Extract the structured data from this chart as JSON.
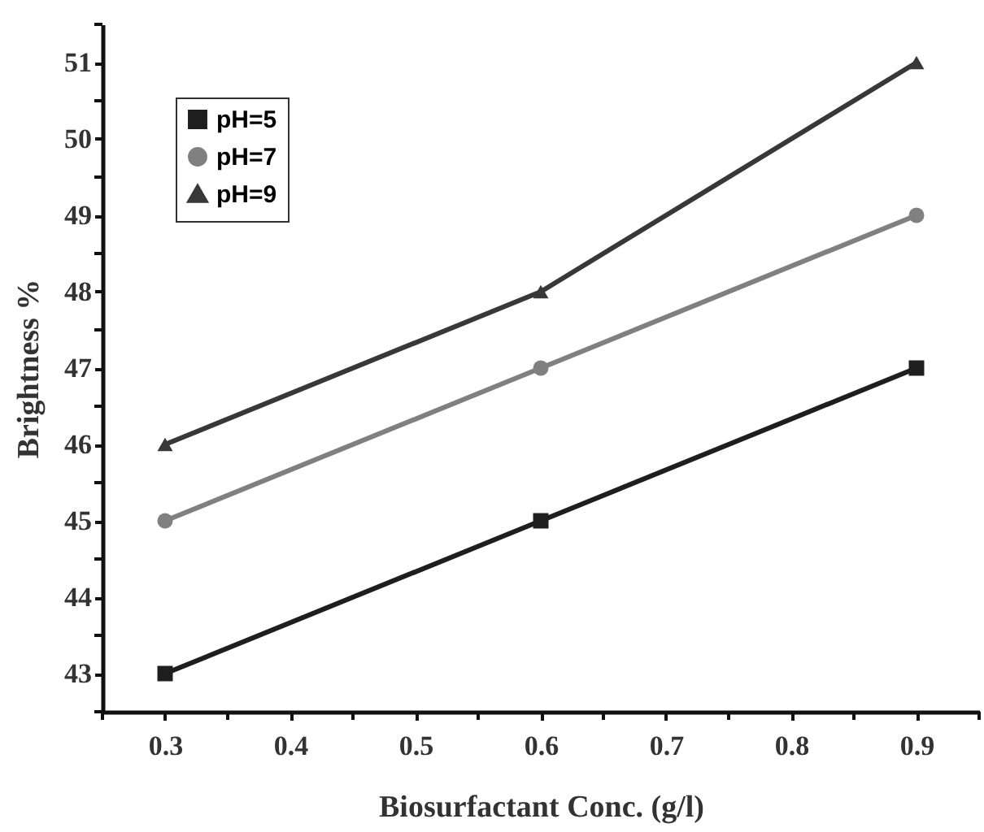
{
  "chart_data": {
    "type": "line",
    "xlabel": "Biosurfactant Conc. (g/l)",
    "ylabel": "Brightness %",
    "x": [
      0.3,
      0.6,
      0.9
    ],
    "series": [
      {
        "name": "pH=5",
        "color": "#1e1e1e",
        "marker": "square",
        "values": [
          43,
          45,
          47
        ]
      },
      {
        "name": "pH=7",
        "color": "#808080",
        "marker": "circle",
        "values": [
          45,
          47,
          49
        ]
      },
      {
        "name": "pH=9",
        "color": "#383838",
        "marker": "triangle",
        "values": [
          46,
          48,
          51
        ]
      }
    ],
    "xlim": [
      0.25,
      0.95
    ],
    "ylim": [
      42.5,
      51.5
    ],
    "xticks": [
      {
        "value": 0.25,
        "label": null
      },
      0.3,
      {
        "value": 0.35,
        "label": null
      },
      0.4,
      {
        "value": 0.45,
        "label": null
      },
      0.5,
      {
        "value": 0.55,
        "label": null
      },
      0.6,
      {
        "value": 0.65,
        "label": null
      },
      0.7,
      {
        "value": 0.75,
        "label": null
      },
      0.8,
      {
        "value": 0.85,
        "label": null
      },
      0.9,
      {
        "value": 0.95,
        "label": null
      }
    ],
    "yticks": [
      {
        "value": 42.5,
        "label": null
      },
      43,
      {
        "value": 43.5,
        "label": null
      },
      44,
      {
        "value": 44.5,
        "label": null
      },
      45,
      {
        "value": 45.5,
        "label": null
      },
      46,
      {
        "value": 46.5,
        "label": null
      },
      47,
      {
        "value": 47.5,
        "label": null
      },
      48,
      {
        "value": 48.5,
        "label": null
      },
      49,
      {
        "value": 49.5,
        "label": null
      },
      50,
      {
        "value": 50.5,
        "label": null
      },
      51,
      {
        "value": 51.5,
        "label": null
      }
    ],
    "grid": false,
    "legend": "top left",
    "line_style": "solid"
  }
}
